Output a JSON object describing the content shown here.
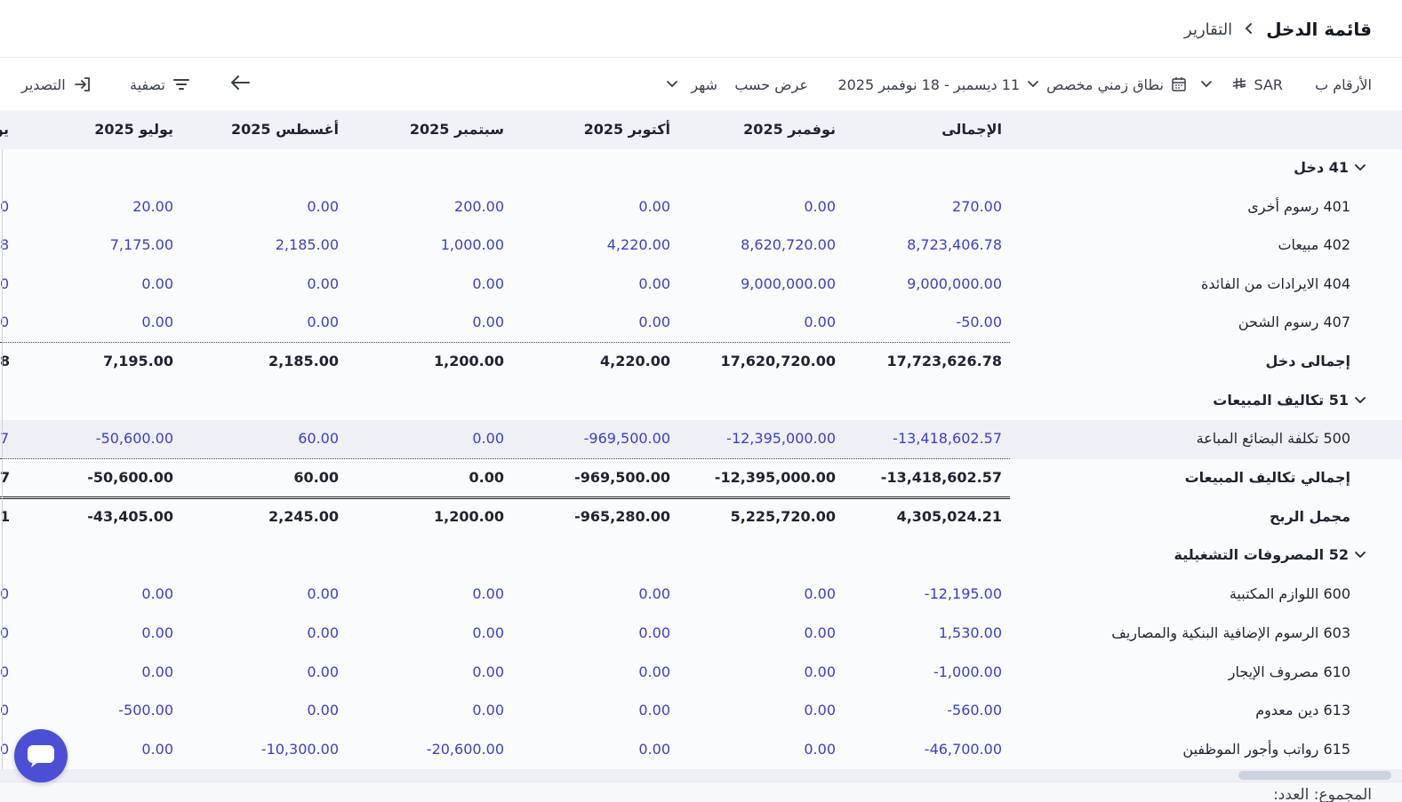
{
  "breadcrumb": {
    "parent": "التقارير",
    "current": "قائمة الدخل"
  },
  "toolbar": {
    "numbers_in_label": "الأرقام ب",
    "currency": "SAR",
    "date_range_type": "نطاق زمني مخصص",
    "date_range": "11 ديسمبر - 18 نوفمبر 2025",
    "view_by_label": "عرض حسب",
    "view_by_value": "شهر",
    "filter_label": "تصفية",
    "export_label": "التصدير"
  },
  "columns": [
    "الإجمالى",
    "نوفمبر 2025",
    "أكتوبر 2025",
    "سبتمبر 2025",
    "أغسطس 2025",
    "يوليو 2025"
  ],
  "partial_column_header": "يو",
  "rows": [
    {
      "type": "group",
      "label": "41 دخل"
    },
    {
      "type": "account",
      "label": "401 رسوم أخرى",
      "values": [
        "270.00",
        "0.00",
        "0.00",
        "200.00",
        "0.00",
        "20.00"
      ],
      "partial": "0"
    },
    {
      "type": "account",
      "label": "402 مبيعات",
      "values": [
        "8,723,406.78",
        "8,620,720.00",
        "4,220.00",
        "1,000.00",
        "2,185.00",
        "7,175.00"
      ],
      "partial": "8"
    },
    {
      "type": "account",
      "label": "404 الايرادات من الفائدة",
      "values": [
        "9,000,000.00",
        "9,000,000.00",
        "0.00",
        "0.00",
        "0.00",
        "0.00"
      ],
      "partial": "0"
    },
    {
      "type": "account",
      "label": "407 رسوم الشحن",
      "values": [
        "-50.00",
        "0.00",
        "0.00",
        "0.00",
        "0.00",
        "0.00"
      ],
      "partial": "0"
    },
    {
      "type": "total",
      "label": "إجمالى دخل",
      "values": [
        "17,723,626.78",
        "17,620,720.00",
        "4,220.00",
        "1,200.00",
        "2,185.00",
        "7,195.00"
      ],
      "partial": "8"
    },
    {
      "type": "group",
      "label": "51 تكاليف المبيعات"
    },
    {
      "type": "account",
      "label": "500 تكلفة البضائع المباعة",
      "values": [
        "-13,418,602.57",
        "-12,395,000.00",
        "-969,500.00",
        "0.00",
        "60.00",
        "-50,600.00"
      ],
      "partial": "7",
      "highlight": true
    },
    {
      "type": "total",
      "label": "إجمالي تكاليف المبيعات",
      "values": [
        "-13,418,602.57",
        "-12,395,000.00",
        "-969,500.00",
        "0.00",
        "60.00",
        "-50,600.00"
      ],
      "partial": "7"
    },
    {
      "type": "profit",
      "label": "مجمل الربح",
      "values": [
        "4,305,024.21",
        "5,225,720.00",
        "-965,280.00",
        "1,200.00",
        "2,245.00",
        "-43,405.00"
      ],
      "partial": "1"
    },
    {
      "type": "group",
      "label": "52 المصروفات التشغيلية"
    },
    {
      "type": "account",
      "label": "600 اللوازم المكتبية",
      "values": [
        "-12,195.00",
        "0.00",
        "0.00",
        "0.00",
        "0.00",
        "0.00"
      ],
      "partial": "0"
    },
    {
      "type": "account",
      "label": "603 الرسوم الإضافية البنكية والمصاريف",
      "values": [
        "1,530.00",
        "0.00",
        "0.00",
        "0.00",
        "0.00",
        "0.00"
      ],
      "partial": "0"
    },
    {
      "type": "account",
      "label": "610 مصروف الإيجار",
      "values": [
        "-1,000.00",
        "0.00",
        "0.00",
        "0.00",
        "0.00",
        "0.00"
      ],
      "partial": "0"
    },
    {
      "type": "account",
      "label": "613 دين معدوم",
      "values": [
        "-560.00",
        "0.00",
        "0.00",
        "0.00",
        "0.00",
        "-500.00"
      ],
      "partial": "0"
    },
    {
      "type": "account",
      "label": "615 رواتب وأجور الموظفين",
      "values": [
        "-46,700.00",
        "0.00",
        "0.00",
        "-20,600.00",
        "-10,300.00",
        "0.00"
      ],
      "partial": "0"
    }
  ],
  "footer": {
    "text": "المجموع: العدد:"
  },
  "colors": {
    "accent": "#4a4fd6",
    "value_blue": "#3b3fc8"
  }
}
